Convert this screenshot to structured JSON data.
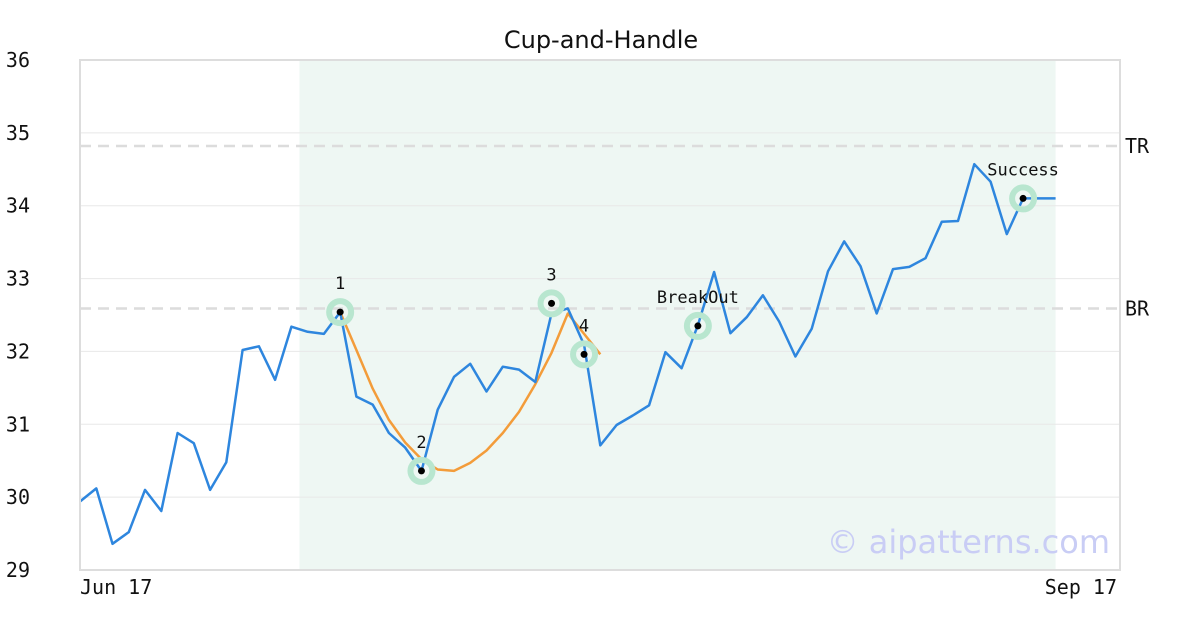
{
  "chart_data": {
    "type": "line",
    "title": "Cup-and-Handle",
    "xlabel": "",
    "ylabel": "",
    "x_tick_labels": [
      "Jun 17",
      "Sep 17"
    ],
    "ylim": [
      29,
      36
    ],
    "y_ticks": [
      29,
      30,
      31,
      32,
      33,
      34,
      35,
      36
    ],
    "grid": "horizontal",
    "series": [
      {
        "color": "#2e86de",
        "values": [
          29.94,
          30.12,
          29.36,
          29.52,
          30.1,
          29.81,
          30.88,
          30.74,
          30.1,
          30.48,
          32.02,
          32.07,
          31.61,
          32.34,
          32.27,
          32.24,
          32.54,
          31.38,
          31.27,
          30.88,
          30.68,
          30.36,
          31.2,
          31.65,
          31.83,
          31.45,
          31.79,
          31.75,
          31.58,
          32.52,
          32.59,
          32.09,
          30.71,
          30.99,
          31.12,
          31.26,
          31.99,
          31.77,
          32.36,
          33.09,
          32.25,
          32.47,
          32.77,
          32.41,
          31.93,
          32.31,
          33.1,
          33.51,
          33.17,
          32.52,
          33.13,
          33.16,
          33.28,
          33.78,
          33.79,
          34.57,
          34.33,
          33.61,
          34.1,
          34.1,
          34.1
        ]
      },
      {
        "color": "#f39c3a",
        "start_index": 16,
        "values": [
          32.54,
          32.02,
          31.49,
          31.06,
          30.75,
          30.52,
          30.38,
          30.36,
          30.47,
          30.64,
          30.88,
          31.17,
          31.55,
          31.98,
          32.52,
          32.24,
          31.96
        ]
      }
    ],
    "shaded_region": {
      "start_index": 14,
      "end_index": 60,
      "color": "#eef7f3"
    },
    "reference_lines": [
      {
        "label": "TR",
        "y": 34.82
      },
      {
        "label": "BR",
        "y": 32.59
      }
    ],
    "points": [
      {
        "label": "1",
        "index": 16,
        "y": 32.54,
        "label_pos": "above"
      },
      {
        "label": "2",
        "index": 21,
        "y": 30.36,
        "label_pos": "above"
      },
      {
        "label": "3",
        "index": 29,
        "y": 32.66,
        "label_pos": "above"
      },
      {
        "label": "4",
        "index": 31,
        "y": 31.96,
        "label_pos": "above"
      },
      {
        "label": "BreakOut",
        "index": 38,
        "y": 32.35,
        "label_pos": "above"
      },
      {
        "label": "Success",
        "index": 58,
        "y": 34.1,
        "label_pos": "above"
      }
    ],
    "watermark": "© aipatterns.com"
  }
}
